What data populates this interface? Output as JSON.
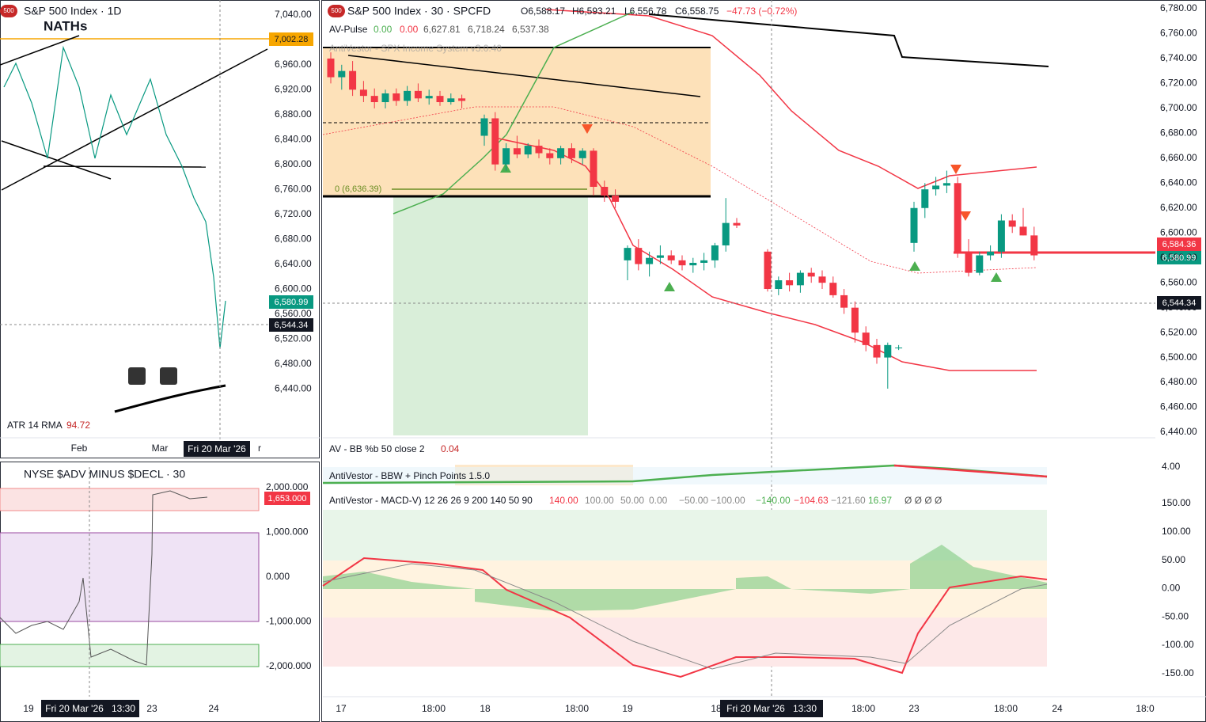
{
  "daily_panel": {
    "badge": "500",
    "title": "S&P 500 Index · 1D",
    "annotation": "NATHs",
    "price_labels": [
      "7,040.00",
      "6,960.00",
      "6,920.00",
      "6,880.00",
      "6,840.00",
      "6,800.00",
      "6,760.00",
      "6,720.00",
      "6,680.00",
      "6,640.00",
      "6,600.00",
      "6,560.00",
      "6,520.00",
      "6,480.00",
      "6,440.00"
    ],
    "level_label": "7,002.28",
    "last_price": "6,580.99",
    "crosshair_price": "6,544.34",
    "indicator_name": "ATR 14 RMA",
    "indicator_value": "94.72",
    "time_labels": [
      "Feb",
      "Mar"
    ],
    "crosshair_time": "Fri 20 Mar '26",
    "cut_label": "r"
  },
  "breadth_panel": {
    "title": "NYSE $ADV MINUS $DECL · 30",
    "price_labels": [
      "2,000.000",
      "1,000.000",
      "0.000",
      "-1,000.000",
      "-2,000.000"
    ],
    "last_value": "1,653.000",
    "time_labels": [
      "19",
      "23",
      "24"
    ],
    "crosshair_time": "Fri 20 Mar '26",
    "crosshair_clock": "13:30"
  },
  "main_panel": {
    "badge": "500",
    "title": "S&P 500 Index · 30 · SPCFD",
    "open": "O6,588.17",
    "high": "H6,593.21",
    "low": "L6,556.78",
    "close": "C6,558.75",
    "change": "−47.73 (−0.72%)",
    "pulse": {
      "name": "AV-Pulse",
      "values": [
        "0.00",
        "0.00",
        "6,627.81",
        "6,718.24",
        "6,537.38"
      ]
    },
    "system_label": "AntiVestor - SPX Income System v3.0.40",
    "box_label": "0 (6,636.39)",
    "price_labels": [
      "6,780.00",
      "6,760.00",
      "6,740.00",
      "6,720.00",
      "6,700.00",
      "6,680.00",
      "6,660.00",
      "6,640.00",
      "6,620.00",
      "6,600.00",
      "6,580.00",
      "6,560.00",
      "6,540.00",
      "6,520.00",
      "6,500.00",
      "6,480.00",
      "6,460.00",
      "6,440.00"
    ],
    "marker_high": "6,584.36",
    "marker_last": "6,580.99",
    "marker_cross": "6,544.34",
    "time_labels": [
      "17",
      "18:00",
      "18",
      "18:00",
      "19",
      "18",
      "18:00",
      "23",
      "18:00",
      "24",
      "18:0"
    ],
    "crosshair_time": "Fri 20 Mar '26",
    "crosshair_clock": "13:30",
    "days": [
      {
        "candles": [
          [
            6740,
            6745,
            6720,
            6725
          ],
          [
            6725,
            6735,
            6715,
            6730
          ],
          [
            6730,
            6738,
            6710,
            6715
          ],
          [
            6715,
            6722,
            6705,
            6710
          ],
          [
            6710,
            6716,
            6700,
            6705
          ],
          [
            6705,
            6715,
            6700,
            6712
          ],
          [
            6712,
            6716,
            6702,
            6706
          ],
          [
            6706,
            6718,
            6702,
            6714
          ],
          [
            6714,
            6720,
            6705,
            6708
          ],
          [
            6708,
            6715,
            6703,
            6710
          ],
          [
            6710,
            6714,
            6702,
            6705
          ],
          [
            6705,
            6712,
            6703,
            6708
          ],
          [
            6708,
            6711,
            6700,
            6706
          ]
        ]
      },
      {
        "candles": [
          [
            6678,
            6695,
            6670,
            6692
          ],
          [
            6692,
            6697,
            6650,
            6655
          ],
          [
            6655,
            6672,
            6650,
            6668
          ],
          [
            6668,
            6678,
            6660,
            6663
          ],
          [
            6663,
            6672,
            6660,
            6670
          ],
          [
            6670,
            6675,
            6660,
            6664
          ],
          [
            6664,
            6668,
            6655,
            6660
          ],
          [
            6660,
            6670,
            6655,
            6668
          ],
          [
            6668,
            6672,
            6656,
            6660
          ],
          [
            6660,
            6668,
            6655,
            6666
          ],
          [
            6666,
            6668,
            6630,
            6637
          ],
          [
            6637,
            6642,
            6625,
            6630
          ],
          [
            6630,
            6635,
            6620,
            6625
          ]
        ]
      },
      {
        "candles": [
          [
            6578,
            6590,
            6562,
            6588
          ],
          [
            6588,
            6595,
            6570,
            6575
          ],
          [
            6575,
            6585,
            6565,
            6580
          ],
          [
            6580,
            6590,
            6575,
            6582
          ],
          [
            6582,
            6586,
            6575,
            6578
          ],
          [
            6578,
            6582,
            6570,
            6574
          ],
          [
            6574,
            6580,
            6568,
            6576
          ],
          [
            6576,
            6584,
            6570,
            6578
          ],
          [
            6578,
            6592,
            6572,
            6590
          ],
          [
            6590,
            6628,
            6585,
            6608
          ],
          [
            6608,
            6612,
            6604,
            6606
          ]
        ]
      },
      {
        "candles": [
          [
            6585,
            6587,
            6553,
            6555
          ],
          [
            6555,
            6565,
            6550,
            6562
          ],
          [
            6562,
            6568,
            6553,
            6558
          ],
          [
            6558,
            6570,
            6552,
            6568
          ],
          [
            6568,
            6572,
            6560,
            6565
          ],
          [
            6565,
            6570,
            6555,
            6560
          ],
          [
            6560,
            6565,
            6548,
            6550
          ],
          [
            6550,
            6555,
            6535,
            6540
          ],
          [
            6540,
            6545,
            6512,
            6520
          ],
          [
            6520,
            6525,
            6505,
            6510
          ],
          [
            6510,
            6515,
            6495,
            6500
          ],
          [
            6500,
            6512,
            6475,
            6510
          ],
          [
            6508,
            6510,
            6506,
            6508
          ]
        ]
      },
      {
        "candles": [
          [
            6592,
            6625,
            6585,
            6620
          ],
          [
            6620,
            6640,
            6612,
            6635
          ],
          [
            6635,
            6645,
            6630,
            6638
          ],
          [
            6638,
            6650,
            6632,
            6640
          ],
          [
            6640,
            6645,
            6580,
            6585
          ],
          [
            6585,
            6595,
            6565,
            6568
          ],
          [
            6568,
            6585,
            6566,
            6582
          ],
          [
            6582,
            6590,
            6578,
            6585
          ],
          [
            6585,
            6615,
            6580,
            6610
          ],
          [
            6610,
            6615,
            6600,
            6605
          ],
          [
            6605,
            6620,
            6598,
            6598
          ],
          [
            6598,
            6605,
            6578,
            6582
          ]
        ]
      }
    ]
  },
  "bb_panel": {
    "name": "AV - BB %b 50 close 2",
    "value": "0.04"
  },
  "bbw_panel": {
    "name": "AntiVestor - BBW + Pinch Points 1.5.0",
    "axis_label": "4.00"
  },
  "macd_panel": {
    "name": "AntiVestor - MACD-V) 12 26 26 9 200 140 50 90",
    "values": [
      "140.00",
      "100.00",
      "50.00",
      "0.00",
      "−50.00",
      "−100.00",
      "−140.00",
      "−104.63",
      "−121.60",
      "16.97",
      "Ø Ø Ø Ø"
    ],
    "axis_labels": [
      "150.00",
      "100.00",
      "50.00",
      "0.00",
      "-50.00",
      "-100.00",
      "-150.00"
    ]
  }
}
